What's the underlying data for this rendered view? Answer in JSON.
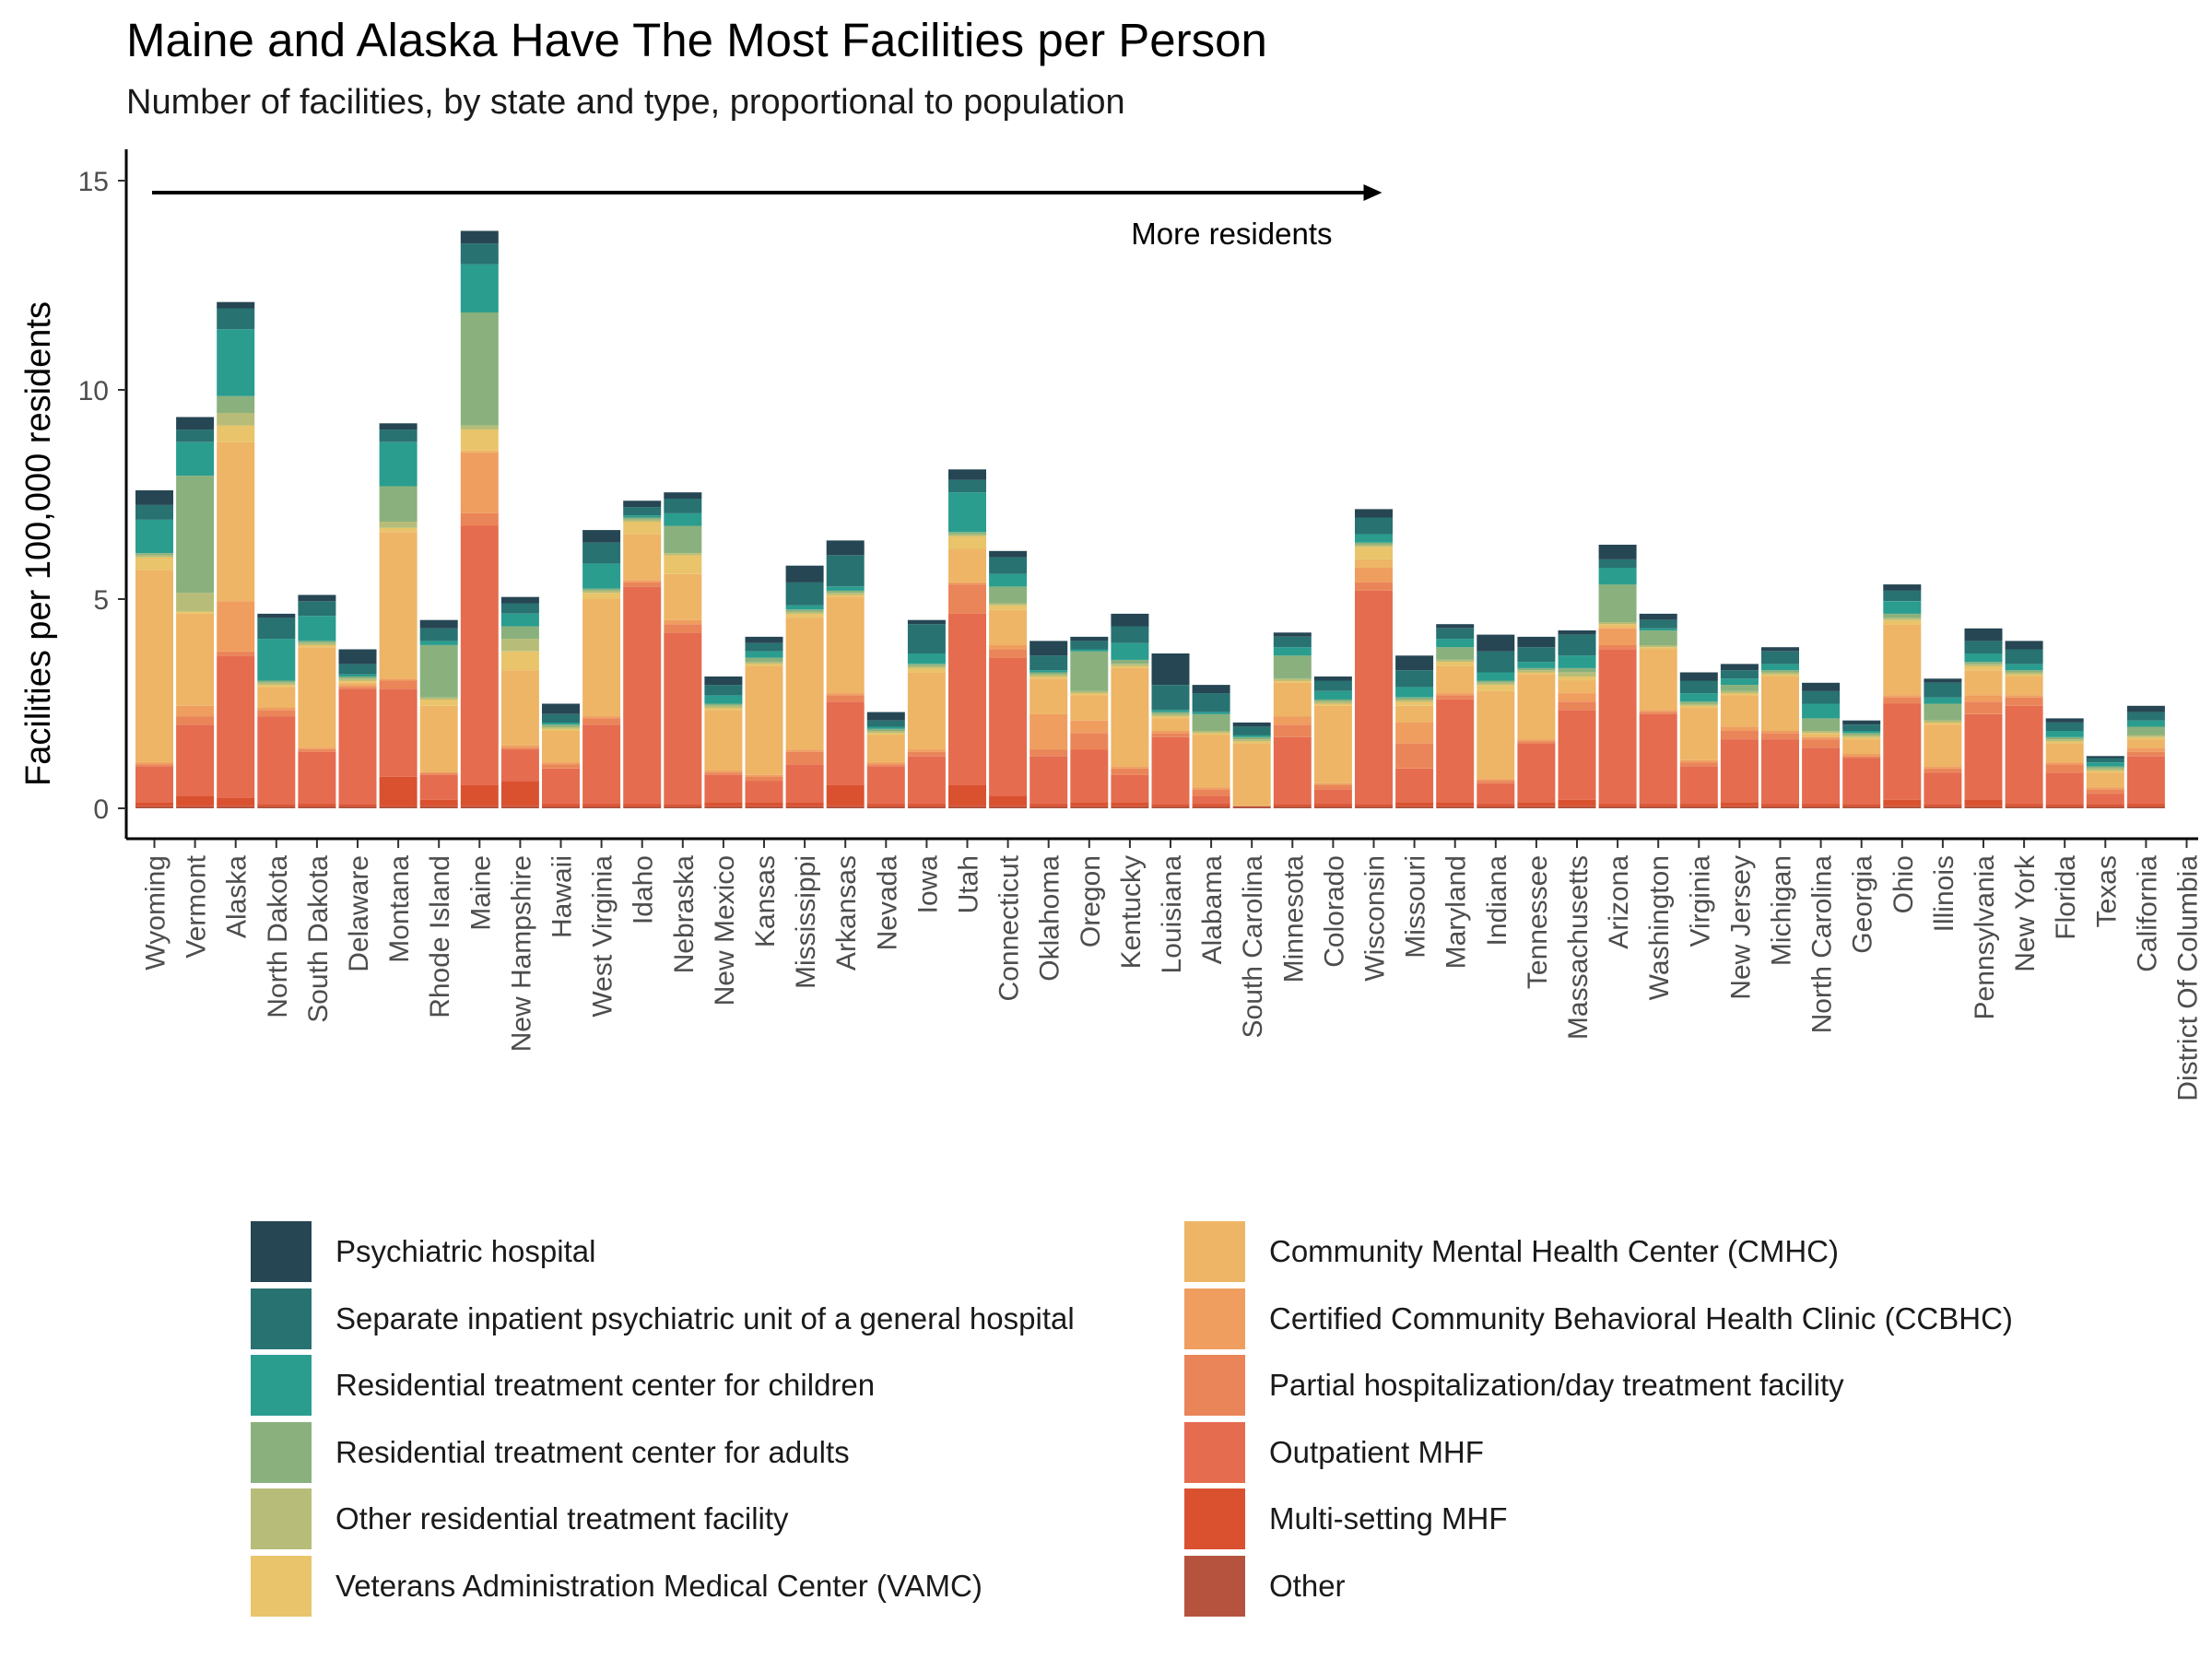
{
  "chart_data": {
    "type": "bar",
    "stacked": true,
    "title": "Maine and Alaska Have The Most Facilities per Person",
    "subtitle": "Number of facilities, by state and type, proportional to population",
    "ylabel": "Facilities per 100,000 residents",
    "xlabel": "",
    "ylim": [
      0,
      16
    ],
    "yticks": [
      0,
      5,
      10,
      15
    ],
    "grid": false,
    "legend_position": "bottom",
    "annotation": {
      "text": "More residents",
      "arrow_y": 15,
      "arrow_from_category": "Wyoming",
      "arrow_to_category": "Wisconsin"
    },
    "categories": [
      "Wyoming",
      "Vermont",
      "Alaska",
      "North Dakota",
      "South Dakota",
      "Delaware",
      "Montana",
      "Rhode Island",
      "Maine",
      "New Hampshire",
      "Hawaii",
      "West Virginia",
      "Idaho",
      "Nebraska",
      "New Mexico",
      "Kansas",
      "Mississippi",
      "Arkansas",
      "Nevada",
      "Iowa",
      "Utah",
      "Connecticut",
      "Oklahoma",
      "Oregon",
      "Kentucky",
      "Louisiana",
      "Alabama",
      "South Carolina",
      "Minnesota",
      "Colorado",
      "Wisconsin",
      "Missouri",
      "Maryland",
      "Indiana",
      "Tennessee",
      "Massachusetts",
      "Arizona",
      "Washington",
      "Virginia",
      "New Jersey",
      "Michigan",
      "North Carolina",
      "Georgia",
      "Ohio",
      "Illinois",
      "Pennsylvania",
      "New York",
      "Florida",
      "Texas",
      "California",
      "District Of Columbia"
    ],
    "series": [
      {
        "name": "Other",
        "color": "#B5533F",
        "values": [
          0.05,
          0.05,
          0.05,
          0.05,
          0.05,
          0.05,
          0.05,
          0.05,
          0.05,
          0.05,
          0.05,
          0.05,
          0.05,
          0.05,
          0.05,
          0.05,
          0.05,
          0.05,
          0.05,
          0.05,
          0.05,
          0.05,
          0.05,
          0.05,
          0.05,
          0.05,
          0.05,
          0.05,
          0.05,
          0.05,
          0.05,
          0.05,
          0.05,
          0.05,
          0.05,
          0.05,
          0.05,
          0.05,
          0.05,
          0.05,
          0.05,
          0.05,
          0.05,
          0.05,
          0.05,
          0.05,
          0.05,
          0.05,
          0.05,
          0.05,
          0
        ]
      },
      {
        "name": "Multi-setting MHF",
        "color": "#DA5130",
        "values": [
          0.1,
          0.25,
          0.2,
          0.05,
          0.05,
          0.05,
          0.7,
          0.15,
          0.5,
          0.6,
          0.05,
          0.05,
          0.05,
          0.05,
          0.1,
          0.1,
          0.1,
          0.5,
          0.05,
          0.05,
          0.5,
          0.25,
          0.05,
          0.1,
          0.1,
          0.05,
          0.05,
          0,
          0.05,
          0.05,
          0.05,
          0.1,
          0.1,
          0.05,
          0.1,
          0.15,
          0.05,
          0.05,
          0.05,
          0.1,
          0.05,
          0.05,
          0.05,
          0.15,
          0.05,
          0.15,
          0.05,
          0.05,
          0.05,
          0.05,
          0
        ]
      },
      {
        "name": "Outpatient MHF",
        "color": "#E56C4F",
        "values": [
          0.85,
          1.7,
          3.4,
          2.1,
          1.25,
          2.75,
          2.1,
          0.6,
          6.2,
          0.75,
          0.85,
          1.9,
          5.2,
          4.1,
          0.65,
          0.5,
          0.9,
          2.0,
          0.9,
          1.15,
          4.1,
          3.3,
          1.15,
          1.25,
          0.65,
          1.6,
          0.2,
          0,
          1.6,
          0.35,
          5.1,
          0.8,
          2.45,
          0.5,
          1.4,
          2.15,
          3.7,
          2.15,
          0.9,
          1.5,
          1.55,
          1.35,
          1.1,
          2.3,
          0.75,
          2.05,
          2.35,
          0.75,
          0.25,
          1.15,
          0
        ]
      },
      {
        "name": "Partial hospitalization/day treatment facility",
        "color": "#EA8559",
        "values": [
          0.05,
          0.2,
          0.1,
          0.15,
          0.05,
          0.05,
          0.2,
          0.05,
          0.3,
          0.05,
          0.1,
          0.15,
          0.1,
          0.2,
          0.05,
          0.1,
          0.3,
          0.15,
          0.05,
          0.1,
          0.7,
          0.2,
          0.15,
          0.4,
          0.15,
          0.1,
          0.15,
          0,
          0.3,
          0.1,
          0.2,
          0.6,
          0.1,
          0.05,
          0.05,
          0.2,
          0.1,
          0.05,
          0.1,
          0.2,
          0.15,
          0.2,
          0.05,
          0.15,
          0.1,
          0.3,
          0.2,
          0.2,
          0.1,
          0.1,
          0
        ]
      },
      {
        "name": "Certified Community Behavioral Health Clinic (CCBHC)",
        "color": "#EF9E60",
        "values": [
          0.05,
          0.25,
          1.2,
          0.05,
          0.05,
          0.05,
          0.05,
          0,
          1.45,
          0.05,
          0.05,
          0.05,
          0.05,
          0.1,
          0.05,
          0.05,
          0.05,
          0.05,
          0.05,
          0.05,
          0.05,
          0.1,
          0.85,
          0.3,
          0.05,
          0.05,
          0.05,
          0,
          0.2,
          0.05,
          0.35,
          0.5,
          0.05,
          0.05,
          0.05,
          0.2,
          0.4,
          0.05,
          0.05,
          0.1,
          0.05,
          0.05,
          0.05,
          0.05,
          0.05,
          0.15,
          0.05,
          0.05,
          0.05,
          0.1,
          0
        ]
      },
      {
        "name": "Community Mental Health Center (CMHC)",
        "color": "#EEB566",
        "values": [
          4.6,
          2.2,
          3.8,
          0.5,
          2.4,
          0.05,
          3.5,
          1.6,
          0.05,
          1.8,
          0.75,
          2.8,
          1.1,
          1.1,
          1.45,
          2.6,
          3.15,
          2.3,
          0.65,
          1.85,
          0.8,
          0.85,
          0.85,
          0.6,
          2.35,
          0.3,
          1.25,
          1.5,
          0.8,
          1.85,
          0.2,
          0.4,
          0.65,
          2.1,
          1.55,
          0.3,
          0.05,
          1.45,
          1.25,
          0.75,
          1.3,
          0.05,
          0.35,
          1.7,
          1.0,
          0.6,
          0.45,
          0.45,
          0.35,
          0.2,
          0
        ]
      },
      {
        "name": "Veterans Administration Medical Center (VAMC)",
        "color": "#E9C46A",
        "values": [
          0.3,
          0.05,
          0.4,
          0.05,
          0.05,
          0.05,
          0.1,
          0.15,
          0.5,
          0.45,
          0.05,
          0.15,
          0.3,
          0.45,
          0.05,
          0.05,
          0.1,
          0.05,
          0.05,
          0.1,
          0.3,
          0.1,
          0.05,
          0.05,
          0.05,
          0.05,
          0.05,
          0.05,
          0.05,
          0.05,
          0.3,
          0.1,
          0.1,
          0.15,
          0.05,
          0.1,
          0.05,
          0.05,
          0.05,
          0.05,
          0.05,
          0.05,
          0.05,
          0.1,
          0.05,
          0.1,
          0.05,
          0.05,
          0.05,
          0.05,
          0
        ]
      },
      {
        "name": "Other residential treatment facility",
        "color": "#B7BD78",
        "values": [
          0.05,
          0.45,
          0.3,
          0.05,
          0.05,
          0.05,
          0.15,
          0.05,
          0.1,
          0.3,
          0.05,
          0.05,
          0.05,
          0.05,
          0.05,
          0.05,
          0.05,
          0.05,
          0.05,
          0.05,
          0.05,
          0.05,
          0.05,
          0.05,
          0.05,
          0.05,
          0.05,
          0.05,
          0.05,
          0.05,
          0.05,
          0.05,
          0.05,
          0.05,
          0.05,
          0.1,
          0.05,
          0.05,
          0.05,
          0.05,
          0.05,
          0.05,
          0.05,
          0.05,
          0.05,
          0.05,
          0.05,
          0.05,
          0.05,
          0.05,
          0
        ]
      },
      {
        "name": "Residential treatment center for adults",
        "color": "#8AB17D",
        "values": [
          0.05,
          2.8,
          0.4,
          0.05,
          0.05,
          0.05,
          0.85,
          1.25,
          2.7,
          0.3,
          0.05,
          0.05,
          0.05,
          0.65,
          0.05,
          0.1,
          0.05,
          0.05,
          0.05,
          0.05,
          0.05,
          0.4,
          0.05,
          0.95,
          0.1,
          0.05,
          0.4,
          0.05,
          0.55,
          0.05,
          0.05,
          0.05,
          0.3,
          0.05,
          0.05,
          0.1,
          0.9,
          0.35,
          0.05,
          0.15,
          0.05,
          0.3,
          0.05,
          0.1,
          0.4,
          0.05,
          0.05,
          0.05,
          0.05,
          0.2,
          0
        ]
      },
      {
        "name": "Residential treatment center for children",
        "color": "#2A9D8F",
        "values": [
          0.8,
          0.8,
          1.6,
          1.0,
          0.6,
          0.05,
          1.05,
          0.1,
          1.15,
          0.3,
          0.05,
          0.6,
          0.05,
          0.3,
          0.2,
          0.15,
          0.1,
          0.1,
          0.05,
          0.25,
          0.95,
          0.3,
          0.05,
          0.05,
          0.4,
          0.05,
          0.05,
          0.05,
          0.2,
          0.2,
          0.2,
          0.25,
          0.2,
          0.2,
          0.15,
          0.3,
          0.4,
          0.05,
          0.2,
          0.15,
          0.15,
          0.35,
          0.05,
          0.3,
          0.15,
          0.2,
          0.15,
          0.15,
          0.1,
          0.15,
          0
        ]
      },
      {
        "name": "Separate inpatient psychiatric unit of a general hospital",
        "color": "#287271",
        "values": [
          0.35,
          0.3,
          0.5,
          0.5,
          0.35,
          0.25,
          0.3,
          0.3,
          0.5,
          0.25,
          0.2,
          0.5,
          0.2,
          0.35,
          0.25,
          0.2,
          0.55,
          0.75,
          0.15,
          0.7,
          0.3,
          0.4,
          0.35,
          0.2,
          0.4,
          0.6,
          0.45,
          0.2,
          0.25,
          0.25,
          0.4,
          0.4,
          0.25,
          0.5,
          0.35,
          0.5,
          0.2,
          0.2,
          0.3,
          0.2,
          0.3,
          0.3,
          0.15,
          0.25,
          0.35,
          0.3,
          0.35,
          0.2,
          0.1,
          0.2,
          0
        ]
      },
      {
        "name": "Psychiatric hospital",
        "color": "#264653",
        "values": [
          0.35,
          0.3,
          0.15,
          0.1,
          0.15,
          0.35,
          0.15,
          0.2,
          0.3,
          0.15,
          0.25,
          0.3,
          0.15,
          0.15,
          0.2,
          0.15,
          0.4,
          0.35,
          0.2,
          0.1,
          0.25,
          0.15,
          0.35,
          0.1,
          0.3,
          0.75,
          0.2,
          0.1,
          0.1,
          0.1,
          0.2,
          0.35,
          0.1,
          0.4,
          0.25,
          0.1,
          0.35,
          0.15,
          0.2,
          0.15,
          0.1,
          0.2,
          0.1,
          0.15,
          0.1,
          0.3,
          0.2,
          0.1,
          0.05,
          0.15,
          0
        ]
      }
    ],
    "legend_order": [
      "Psychiatric hospital",
      "Separate inpatient psychiatric unit of a general hospital",
      "Residential treatment center for children",
      "Residential treatment center for adults",
      "Other residential treatment facility",
      "Veterans Administration Medical Center (VAMC)",
      "Community Mental Health Center (CMHC)",
      "Certified Community Behavioral Health Clinic (CCBHC)",
      "Partial hospitalization/day treatment facility",
      "Outpatient MHF",
      "Multi-setting MHF",
      "Other"
    ]
  }
}
